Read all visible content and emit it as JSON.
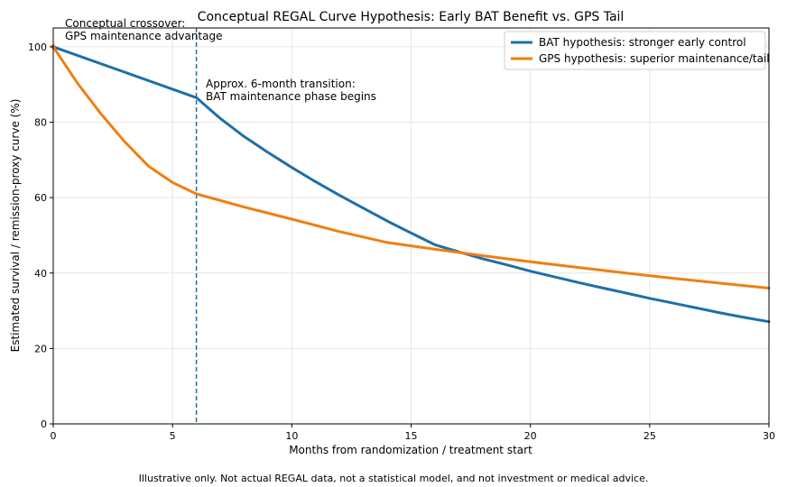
{
  "chart_data": {
    "type": "line",
    "title": "Conceptual REGAL Curve Hypothesis: Early BAT Benefit vs. GPS Tail",
    "xlabel": "Months from randomization / treatment start",
    "ylabel": "Estimated survival / remission-proxy curve (%)",
    "xlim": [
      0,
      30
    ],
    "ylim": [
      0,
      105
    ],
    "x_ticks": [
      0,
      5,
      10,
      15,
      20,
      25,
      30
    ],
    "y_ticks": [
      0,
      20,
      40,
      60,
      80,
      100
    ],
    "grid": true,
    "legend_position": "top-right",
    "series": [
      {
        "name": "BAT hypothesis: stronger early control",
        "color": "#1f6fa8",
        "x": [
          0,
          6,
          7,
          8,
          9,
          10,
          11,
          12,
          13,
          14,
          15,
          16,
          17,
          18,
          19,
          20,
          21,
          22,
          23,
          24,
          25,
          26,
          27,
          28,
          29,
          30
        ],
        "y": [
          100,
          86.5,
          81.0,
          76.2,
          72.0,
          68.0,
          64.2,
          60.6,
          57.2,
          53.8,
          50.6,
          47.5,
          45.6,
          43.8,
          42.2,
          40.5,
          39.0,
          37.5,
          36.1,
          34.7,
          33.3,
          32.0,
          30.7,
          29.4,
          28.2,
          27.1
        ]
      },
      {
        "name": "GPS hypothesis: superior maintenance/tail",
        "color": "#f07f12",
        "x": [
          0,
          1,
          2,
          3,
          4,
          5,
          6,
          8,
          10,
          12,
          14,
          16,
          18,
          20,
          22,
          24,
          26,
          28,
          30
        ],
        "y": [
          100,
          90.5,
          82.2,
          74.8,
          68.3,
          64.0,
          61.0,
          57.5,
          54.3,
          51.0,
          48.1,
          46.3,
          44.6,
          43.0,
          41.5,
          40.0,
          38.6,
          37.3,
          36.0
        ]
      }
    ],
    "vline": {
      "x": 6,
      "color": "#1f6fa8"
    },
    "annotations": [
      {
        "line1": "Conceptual crossover:",
        "line2": "GPS maintenance advantage"
      },
      {
        "line1": "Approx. 6-month transition:",
        "line2": "BAT maintenance phase begins"
      }
    ],
    "caption": "Illustrative only. Not actual REGAL data, not a statistical model, and not investment or medical advice."
  }
}
